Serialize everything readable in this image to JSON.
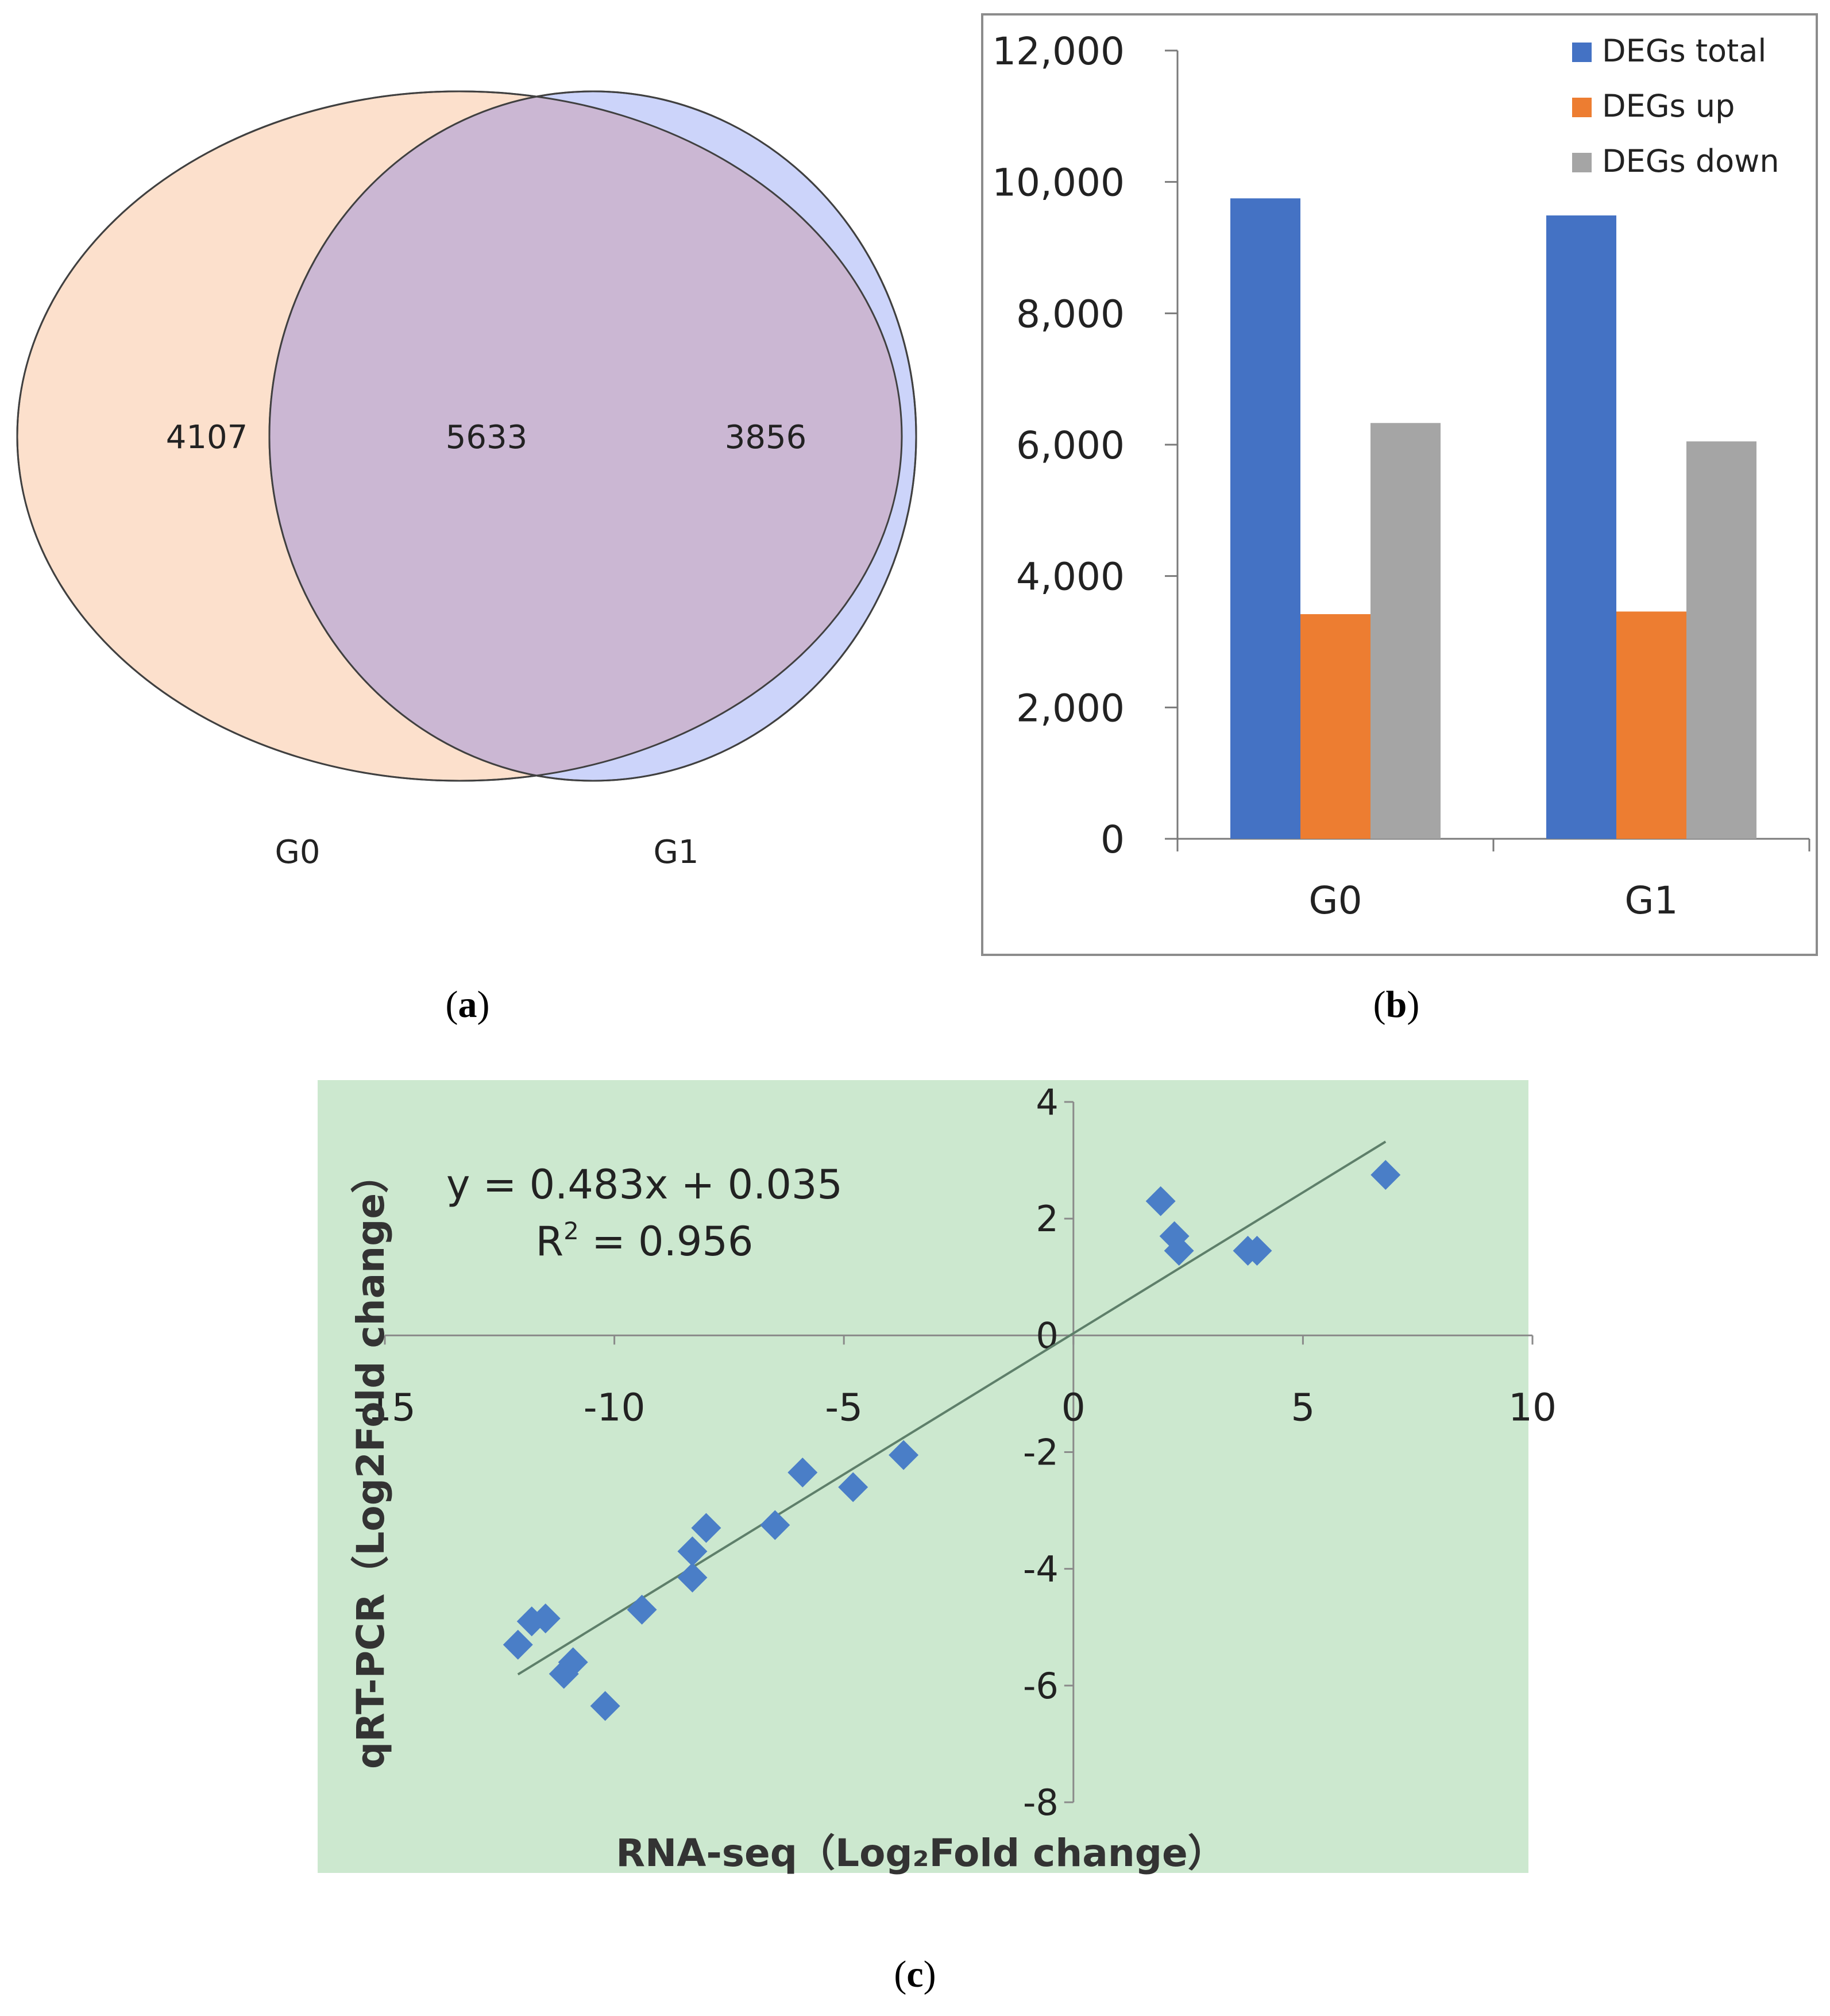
{
  "panel_labels": {
    "a": "a",
    "b": "b",
    "c": "c"
  },
  "chart_data": [
    {
      "type": "venn",
      "sets": [
        {
          "name": "G0",
          "only": "4107",
          "color": "#FCE0CC"
        },
        {
          "name": "G1",
          "only": "3856",
          "color": "#CCD4FA"
        }
      ],
      "intersection": "5633",
      "overlap_color": "#CBB7D3"
    },
    {
      "type": "bar",
      "categories": [
        "G0",
        "G1"
      ],
      "series": [
        {
          "name": "DEGs total",
          "color": "#4472C4",
          "values": [
            9750,
            9490
          ]
        },
        {
          "name": "DEGs up",
          "color": "#ED7D31",
          "values": [
            3420,
            3460
          ]
        },
        {
          "name": "DEGs down",
          "color": "#A5A5A5",
          "values": [
            6330,
            6050
          ]
        }
      ],
      "ylim": [
        0,
        12000
      ],
      "yticks": [
        {
          "value": 0,
          "label": "0"
        },
        {
          "value": 2000,
          "label": "2,000"
        },
        {
          "value": 4000,
          "label": "4,000"
        },
        {
          "value": 6000,
          "label": "6,000"
        },
        {
          "value": 8000,
          "label": "8,000"
        },
        {
          "value": 10000,
          "label": "10,000"
        },
        {
          "value": 12000,
          "label": "12,000"
        }
      ],
      "legend_position": "top-right"
    },
    {
      "type": "scatter",
      "xlabel": "RNA-seq（Log₂Fold change）",
      "ylabel": "qRT-PCR（Log2Fold change）",
      "equation": "y = 0.483x + 0.035",
      "r2_prefix": "R",
      "r2_exp": "2",
      "r2_value": " = 0.956",
      "xlim": [
        -15,
        10
      ],
      "ylim": [
        -8,
        4
      ],
      "xticks": [
        {
          "value": -15,
          "label": "-15"
        },
        {
          "value": -10,
          "label": "-10"
        },
        {
          "value": -5,
          "label": "-5"
        },
        {
          "value": 0,
          "label": "0"
        },
        {
          "value": 5,
          "label": "5"
        },
        {
          "value": 10,
          "label": "10"
        }
      ],
      "yticks": [
        {
          "value": -8,
          "label": "-8"
        },
        {
          "value": -6,
          "label": "-6"
        },
        {
          "value": -4,
          "label": "-4"
        },
        {
          "value": -2,
          "label": "-2"
        },
        {
          "value": 0,
          "label": "0"
        },
        {
          "value": 2,
          "label": "2"
        },
        {
          "value": 4,
          "label": "4"
        }
      ],
      "trendline": {
        "slope": 0.483,
        "intercept": 0.035,
        "x_range": [
          -12.1,
          6.8
        ]
      },
      "background_color": "#CCE8CF",
      "marker_color": "#4A7EC7",
      "points": [
        {
          "x": -12.1,
          "y": -5.3
        },
        {
          "x": -11.8,
          "y": -4.9
        },
        {
          "x": -11.5,
          "y": -4.85
        },
        {
          "x": -11.1,
          "y": -5.8
        },
        {
          "x": -10.9,
          "y": -5.6
        },
        {
          "x": -10.2,
          "y": -6.35
        },
        {
          "x": -9.4,
          "y": -4.7
        },
        {
          "x": -8.3,
          "y": -4.15
        },
        {
          "x": -8.3,
          "y": -3.7
        },
        {
          "x": -8.0,
          "y": -3.3
        },
        {
          "x": -6.5,
          "y": -3.25
        },
        {
          "x": -5.9,
          "y": -2.35
        },
        {
          "x": -4.8,
          "y": -2.6
        },
        {
          "x": -3.7,
          "y": -2.05
        },
        {
          "x": 1.9,
          "y": 2.3
        },
        {
          "x": 2.2,
          "y": 1.7
        },
        {
          "x": 2.3,
          "y": 1.45
        },
        {
          "x": 3.8,
          "y": 1.45
        },
        {
          "x": 4.0,
          "y": 1.45
        },
        {
          "x": 6.8,
          "y": 2.75
        }
      ]
    }
  ]
}
